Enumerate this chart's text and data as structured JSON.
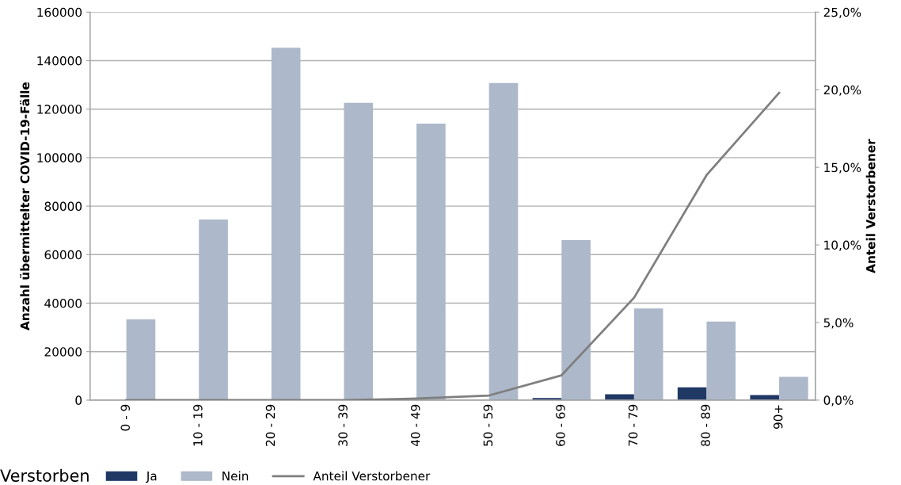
{
  "chart_data": {
    "type": "bar",
    "ylabel": "Anzahl übermittelter COVID-19-Fälle",
    "y2label": "Anteil Verstorbener",
    "legend_title": "Verstorben",
    "categories": [
      "0 - 9",
      "10 - 19",
      "20 - 29",
      "30 - 39",
      "40 - 49",
      "50 - 59",
      "60 - 69",
      "70 - 79",
      "80 - 89",
      "90+"
    ],
    "series": [
      {
        "name": "Ja",
        "color": "#203864",
        "values": [
          0,
          0,
          0,
          0,
          null,
          null,
          900,
          2400,
          5300,
          2100
        ]
      },
      {
        "name": "Nein",
        "color": "#adb9ca",
        "values": [
          33300,
          74500,
          145300,
          122600,
          114000,
          130800,
          66000,
          37800,
          32400,
          9600
        ]
      },
      {
        "name": "Anteil Verstorbener",
        "type": "line",
        "axis": "y2",
        "color": "#7f7f7f",
        "values": [
          0.0,
          0.0,
          0.0,
          0.0,
          0.1,
          0.3,
          1.6,
          6.6,
          14.5,
          19.8
        ]
      }
    ],
    "ylim": [
      0,
      160000
    ],
    "yticks": [
      0,
      20000,
      40000,
      60000,
      80000,
      100000,
      120000,
      140000,
      160000
    ],
    "y2lim": [
      0,
      25
    ],
    "y2ticks": [
      {
        "value": 0,
        "label": "0,0%"
      },
      {
        "value": 5,
        "label": "5,0%"
      },
      {
        "value": 10,
        "label": "10,0%"
      },
      {
        "value": 15,
        "label": "15,0%"
      },
      {
        "value": 20,
        "label": "20,0%"
      },
      {
        "value": 25,
        "label": "25,0%"
      }
    ],
    "grid": "y",
    "legend": "bottom"
  }
}
